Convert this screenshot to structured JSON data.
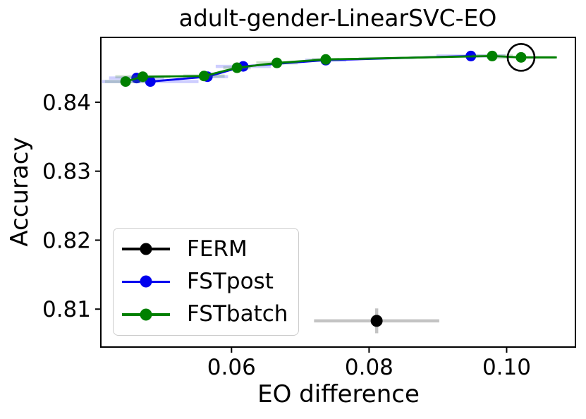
{
  "chart_data": {
    "type": "line",
    "title": "adult-gender-LinearSVC-EO",
    "xlabel": "EO difference",
    "ylabel": "Accuracy",
    "xlim": [
      0.041,
      0.11
    ],
    "ylim": [
      0.8045,
      0.8494
    ],
    "grid": false,
    "legend_position": "lower left",
    "xticks": {
      "values": [
        0.06,
        0.08,
        0.1
      ],
      "labels": [
        "0.06",
        "0.08",
        "0.10"
      ]
    },
    "yticks": {
      "values": [
        0.81,
        0.82,
        0.83,
        0.84
      ],
      "labels": [
        "0.81",
        "0.82",
        "0.83",
        "0.84"
      ]
    },
    "series": [
      {
        "name": "FERM",
        "color": "#000000",
        "error_color": "#c3c3c3",
        "marker_radius": 8.5,
        "draw_line": false,
        "points": [
          {
            "x": 0.0811,
            "y": 0.8083,
            "xerr": 0.0091,
            "yerr": 0.0018
          }
        ]
      },
      {
        "name": "FSTpost",
        "color": "#0000ee",
        "error_color": "rgba(30,30,255,0.22)",
        "marker_radius": 7.5,
        "draw_line": true,
        "points": [
          {
            "x": 0.0462,
            "y": 0.8435,
            "xerr": 0.004
          },
          {
            "x": 0.0482,
            "y": 0.843,
            "xerr": 0.007
          },
          {
            "x": 0.0565,
            "y": 0.8437,
            "xerr": 0.003
          },
          {
            "x": 0.0617,
            "y": 0.8452,
            "xerr": 0.004
          },
          {
            "x": 0.0737,
            "y": 0.8461,
            "xerr": 0.003
          },
          {
            "x": 0.0948,
            "y": 0.8467,
            "xerr": 0.005
          }
        ]
      },
      {
        "name": "FSTbatch",
        "color": "#008000",
        "error_color": "rgba(70,140,70,0.25)",
        "marker_radius": 7.5,
        "draw_line": true,
        "line_end_x": 0.1073,
        "points": [
          {
            "x": 0.0446,
            "y": 0.843,
            "xerr": 0.003
          },
          {
            "x": 0.0471,
            "y": 0.8437,
            "xerr": 0.004
          },
          {
            "x": 0.056,
            "y": 0.8438,
            "xerr": 0.003
          },
          {
            "x": 0.0608,
            "y": 0.845,
            "xerr": 0.002
          },
          {
            "x": 0.0666,
            "y": 0.8457,
            "xerr": 0.003
          },
          {
            "x": 0.0737,
            "y": 0.8462,
            "xerr": 0.002
          },
          {
            "x": 0.0979,
            "y": 0.8467,
            "xerr": 0.003
          },
          {
            "x": 0.1021,
            "y": 0.8465,
            "xerr": 0.005
          }
        ]
      }
    ],
    "annotation": {
      "type": "circle",
      "x": 0.1021,
      "y": 0.8465,
      "radius_px": 19,
      "color": "#000000"
    }
  }
}
